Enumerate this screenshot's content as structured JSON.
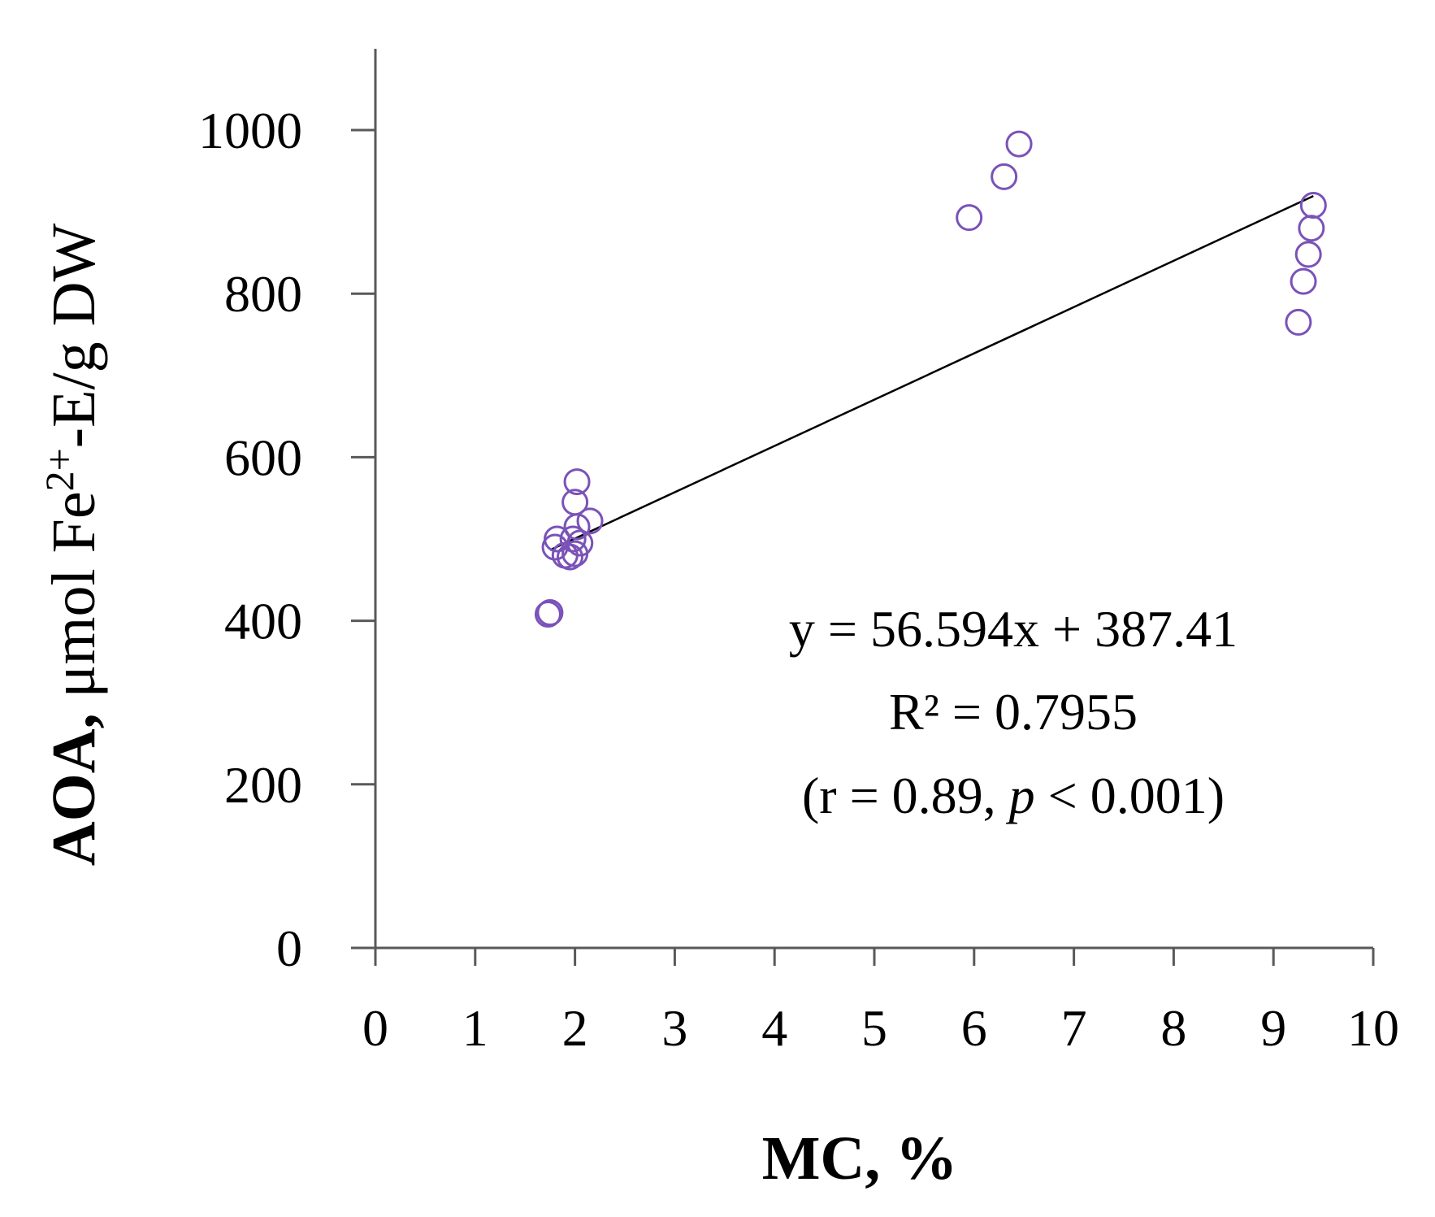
{
  "chart_data": {
    "type": "scatter",
    "xlabel": "MC, %",
    "ylabel": {
      "bold": "AOA,",
      "pre": " μmol Fe",
      "sup": "2+",
      "post": "-E/g DW"
    },
    "xlim": [
      0,
      10
    ],
    "ylim": [
      0,
      1100
    ],
    "x_ticks": [
      "0",
      "1",
      "2",
      "3",
      "4",
      "5",
      "6",
      "7",
      "8",
      "9",
      "10"
    ],
    "y_ticks": [
      "0",
      "200",
      "400",
      "600",
      "800",
      "1000"
    ],
    "grid": false,
    "marker": "open-circle",
    "point_color": "#7a52b8",
    "series": [
      {
        "points": [
          [
            1.75,
            410
          ],
          [
            1.73,
            408
          ],
          [
            1.82,
            500
          ],
          [
            1.8,
            490
          ],
          [
            1.9,
            480
          ],
          [
            1.95,
            478
          ],
          [
            2.0,
            482
          ],
          [
            1.98,
            500
          ],
          [
            2.05,
            495
          ],
          [
            2.02,
            515
          ],
          [
            2.15,
            522
          ],
          [
            2.0,
            545
          ],
          [
            2.02,
            570
          ],
          [
            5.95,
            893
          ],
          [
            6.3,
            943
          ],
          [
            6.45,
            983
          ],
          [
            9.4,
            908
          ],
          [
            9.38,
            880
          ],
          [
            9.35,
            848
          ],
          [
            9.3,
            815
          ],
          [
            9.25,
            765
          ]
        ]
      }
    ],
    "trendline": {
      "slope": 56.594,
      "intercept": 387.41,
      "x_range": [
        1.75,
        9.4
      ]
    },
    "annotations": {
      "equation": "y = 56.594x + 387.41",
      "r_squared": "R² = 0.7955",
      "stats_prefix": "(r = 0.89, ",
      "stats_p": "p",
      "stats_suffix": " < 0.001)"
    }
  }
}
